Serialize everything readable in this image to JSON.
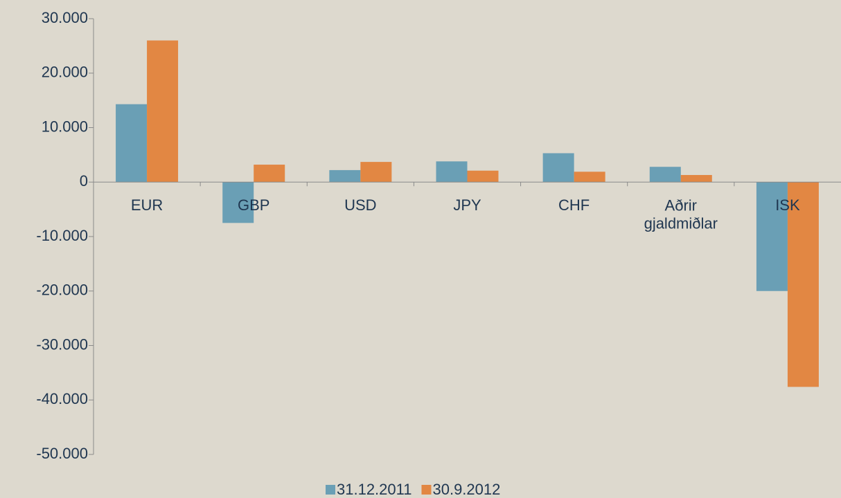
{
  "chart_data": {
    "type": "bar",
    "categories": [
      "EUR",
      "GBP",
      "USD",
      "JPY",
      "CHF",
      "Aðrir\ngjaldmiðlar",
      "ISK"
    ],
    "series": [
      {
        "name": "31.12.2011",
        "color": "#6a9fb5",
        "values": [
          14300,
          -7500,
          2200,
          3800,
          5300,
          2800,
          -20000
        ]
      },
      {
        "name": "30.9.2012",
        "color": "#e28743",
        "values": [
          26000,
          3200,
          3700,
          2100,
          1900,
          1300,
          -37600
        ]
      }
    ],
    "ylim": [
      -50000,
      30000
    ],
    "yticks": [
      {
        "value": -50000,
        "label": "-50.000"
      },
      {
        "value": -40000,
        "label": "-40.000"
      },
      {
        "value": -30000,
        "label": "-30.000"
      },
      {
        "value": -20000,
        "label": "-20.000"
      },
      {
        "value": -10000,
        "label": "-10.000"
      },
      0,
      {
        "value": 10000,
        "label": "10.000"
      },
      {
        "value": 20000,
        "label": "20.000"
      },
      {
        "value": 30000,
        "label": "30.000"
      }
    ],
    "legend": "bottom"
  }
}
